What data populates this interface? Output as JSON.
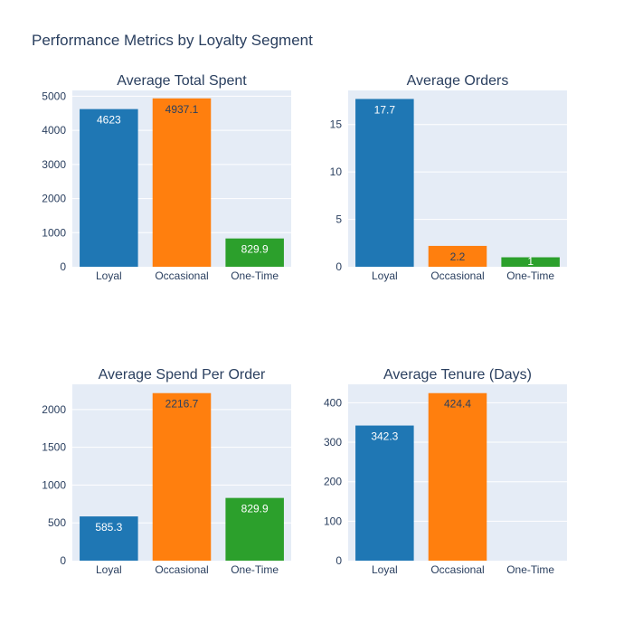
{
  "title": "Performance Metrics by Loyalty Segment",
  "chart_data": [
    {
      "type": "bar",
      "title": "Average Total Spent",
      "categories": [
        "Loyal",
        "Occasional",
        "One-Time"
      ],
      "values": [
        4623,
        4937.1,
        829.9
      ],
      "labels": [
        "4623",
        "4937.1",
        "829.9"
      ],
      "ylim": [
        0,
        5170
      ],
      "yticks": [
        0,
        1000,
        2000,
        3000,
        4000,
        5000
      ]
    },
    {
      "type": "bar",
      "title": "Average Orders",
      "categories": [
        "Loyal",
        "Occasional",
        "One-Time"
      ],
      "values": [
        17.7,
        2.2,
        1
      ],
      "labels": [
        "17.7",
        "2.2",
        "1"
      ],
      "ylim": [
        0,
        18.6
      ],
      "yticks": [
        0,
        5,
        10,
        15
      ]
    },
    {
      "type": "bar",
      "title": "Average Spend Per Order",
      "categories": [
        "Loyal",
        "Occasional",
        "One-Time"
      ],
      "values": [
        585.3,
        2216.7,
        829.9
      ],
      "labels": [
        "585.3",
        "2216.7",
        "829.9"
      ],
      "ylim": [
        0,
        2333
      ],
      "yticks": [
        0,
        500,
        1000,
        1500,
        2000
      ]
    },
    {
      "type": "bar",
      "title": "Average Tenure (Days)",
      "categories": [
        "Loyal",
        "Occasional",
        "One-Time"
      ],
      "values": [
        342.3,
        424.4,
        0
      ],
      "labels": [
        "342.3",
        "424.4",
        ""
      ],
      "ylim": [
        0,
        446.7
      ],
      "yticks": [
        0,
        100,
        200,
        300,
        400
      ]
    }
  ],
  "colors": {
    "series": [
      "#1f77b4",
      "#ff7f0e",
      "#2ca02c"
    ],
    "plot_background": "#e5ecf6",
    "text": "#2a3f5f"
  }
}
